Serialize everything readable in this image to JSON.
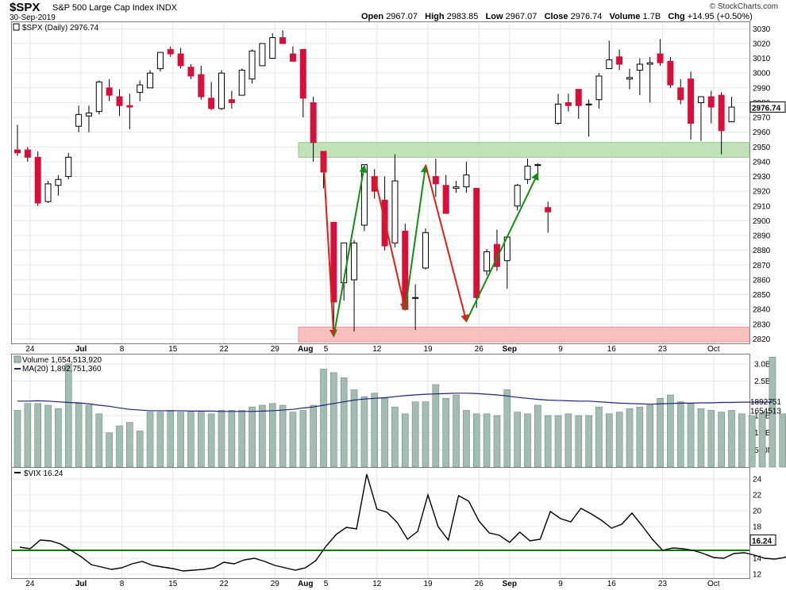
{
  "header": {
    "ticker": "$SPX",
    "name": "S&P 500 Large Cap Index",
    "exchange": "INDX",
    "date": "30-Sep-2019",
    "open_label": "Open",
    "open": "2967.07",
    "high_label": "High",
    "high": "2983.85",
    "low_label": "Low",
    "low": "2967.07",
    "close_label": "Close",
    "close": "2976.74",
    "volume_label": "Volume",
    "volume": "1.7B",
    "chg_label": "Chg",
    "chg": "+14.95 (+0.50%)",
    "credit": "© StockCharts.com"
  },
  "colors": {
    "up": "#ffffff",
    "down": "#d6103a",
    "volume_bar": "#a3bdb3",
    "ma_line": "#1a237e",
    "support_zone": "#b8dfae",
    "low_zone": "#f7b7b4",
    "red_arrow": "#e02010",
    "green_arrow": "#109010",
    "vix_line": "#000000",
    "vix_ref": "#007a00"
  },
  "chart_data": [
    {
      "type": "candlestick",
      "title": "$SPX (Daily) 2976.74",
      "ylim": [
        2817,
        3035
      ],
      "y_ticks": [
        2820,
        2830,
        2840,
        2850,
        2860,
        2870,
        2880,
        2890,
        2900,
        2910,
        2920,
        2930,
        2940,
        2950,
        2960,
        2970,
        2980,
        2990,
        3000,
        3010,
        3020,
        3030
      ],
      "last_value_label": "2976.74",
      "x_ticks": [
        "24",
        "Jul",
        "8",
        "15",
        "22",
        "29",
        "Aug",
        "5",
        "12",
        "19",
        "26",
        "Sep",
        "9",
        "16",
        "23",
        "Oct"
      ],
      "ohlc": [
        [
          2948,
          2965,
          2944,
          2946
        ],
        [
          2948,
          2950,
          2940,
          2943
        ],
        [
          2943,
          2947,
          2910,
          2912
        ],
        [
          2913,
          2927,
          2912,
          2925
        ],
        [
          2924,
          2931,
          2917,
          2928
        ],
        [
          2930,
          2946,
          2928,
          2943
        ],
        [
          2964,
          2978,
          2960,
          2972
        ],
        [
          2971,
          2978,
          2960,
          2973
        ],
        [
          2974,
          2995,
          2972,
          2994
        ],
        [
          2990,
          2996,
          2981,
          2985
        ],
        [
          2984,
          2989,
          2971,
          2978
        ],
        [
          2978,
          2986,
          2962,
          2977
        ],
        [
          2987,
          2995,
          2981,
          2992
        ],
        [
          2990,
          3002,
          2990,
          3000
        ],
        [
          3003,
          3014,
          3001,
          3014
        ],
        [
          3016,
          3018,
          3011,
          3013
        ],
        [
          3013,
          3017,
          3003,
          3005
        ],
        [
          3004,
          3006,
          2996,
          2998
        ],
        [
          2999,
          3005,
          2982,
          2984
        ],
        [
          2983,
          2994,
          2975,
          2976
        ],
        [
          2976,
          3002,
          2975,
          3000
        ],
        [
          2982,
          2988,
          2976,
          2980
        ],
        [
          2985,
          3003,
          2985,
          3002
        ],
        [
          2996,
          3016,
          2993,
          3015
        ],
        [
          3005,
          3020,
          3005,
          3020
        ],
        [
          3010,
          3027,
          3010,
          3024
        ],
        [
          3024,
          3029,
          3020,
          3020
        ],
        [
          3013,
          3018,
          3008,
          3008
        ],
        [
          3016,
          3016,
          2970,
          2983
        ],
        [
          2980,
          2984,
          2940,
          2953
        ],
        [
          2947,
          2947,
          2922,
          2933
        ],
        [
          2899,
          2899,
          2825,
          2845
        ],
        [
          2858,
          2885,
          2846,
          2885
        ],
        [
          2860,
          2887,
          2825,
          2885
        ],
        [
          2897,
          2938,
          2893,
          2938
        ],
        [
          2930,
          2935,
          2915,
          2920
        ],
        [
          2914,
          2930,
          2880,
          2883
        ],
        [
          2885,
          2945,
          2882,
          2927
        ],
        [
          2893,
          2898,
          2840,
          2840
        ],
        [
          2848,
          2857,
          2826,
          2848
        ],
        [
          2868,
          2895,
          2867,
          2892
        ],
        [
          2930,
          2942,
          2916,
          2925
        ],
        [
          2924,
          2931,
          2905,
          2905
        ],
        [
          2922,
          2927,
          2919,
          2923
        ],
        [
          2923,
          2940,
          2919,
          2931
        ],
        [
          2922,
          2922,
          2841,
          2848
        ],
        [
          2866,
          2881,
          2863,
          2879
        ],
        [
          2884,
          2894,
          2866,
          2869
        ],
        [
          2873,
          2889,
          2854,
          2889
        ],
        [
          2910,
          2925,
          2907,
          2924
        ],
        [
          2928,
          2942,
          2925,
          2937
        ],
        [
          2938,
          2939,
          2928,
          2938
        ],
        [
          2909,
          2913,
          2892,
          2906
        ],
        [
          2966,
          2986,
          2965,
          2979
        ],
        [
          2980,
          2986,
          2974,
          2978
        ],
        [
          2989,
          2989,
          2969,
          2978
        ],
        [
          2979,
          2982,
          2957,
          2979
        ],
        [
          2982,
          3000,
          2976,
          2998
        ],
        [
          3003,
          3022,
          3003,
          3009
        ],
        [
          3011,
          3016,
          3002,
          3006
        ],
        [
          2996,
          3003,
          2989,
          2997
        ],
        [
          3002,
          3010,
          2985,
          3006
        ],
        [
          3006,
          3011,
          2980,
          3007
        ],
        [
          3013,
          3023,
          3005,
          3007
        ],
        [
          3008,
          3011,
          2990,
          2992
        ],
        [
          2990,
          2996,
          2979,
          2982
        ],
        [
          2996,
          3001,
          2955,
          2966
        ],
        [
          2980,
          2984,
          2954,
          2984
        ],
        [
          2984,
          2988,
          2966,
          2977
        ],
        [
          2985,
          2987,
          2945,
          2961
        ],
        [
          2967,
          2984,
          2967,
          2977
        ]
      ]
    },
    {
      "type": "bar",
      "title": "Volume 1,654,513,920",
      "ma_label": "MA(20) 1,892,751,360",
      "y_ticks": [
        "3.0B",
        "2.5B",
        "1.5B",
        "1.0B",
        "500M"
      ],
      "y_tick_values": [
        3.0,
        2.5,
        1.5,
        1.0,
        0.5
      ],
      "ylim": [
        0,
        3.3
      ],
      "right_labels": [
        "1892751",
        "1654513"
      ],
      "values": [
        3.05,
        1.65,
        1.85,
        1.85,
        1.8,
        1.7,
        3.0,
        1.85,
        1.8,
        1.55,
        1.0,
        1.2,
        1.3,
        1.05,
        1.6,
        1.6,
        1.65,
        1.6,
        1.6,
        1.6,
        1.55,
        1.65,
        1.65,
        1.65,
        1.75,
        1.8,
        1.85,
        1.8,
        1.6,
        1.65,
        1.8,
        2.85,
        2.75,
        2.6,
        2.25,
        2.05,
        2.15,
        2.0,
        1.75,
        1.55,
        1.9,
        1.9,
        2.4,
        2.0,
        2.1,
        1.65,
        1.55,
        1.55,
        1.5,
        2.25,
        1.6,
        1.55,
        1.8,
        1.5,
        1.5,
        1.55,
        1.5,
        1.5,
        1.75,
        1.55,
        1.6,
        1.7,
        1.75,
        1.8,
        2.0,
        2.1,
        1.9,
        1.85,
        1.7,
        1.65,
        1.6,
        1.65,
        1.55,
        1.5,
        1.55,
        3.2,
        1.55,
        1.9,
        1.55,
        1.6,
        1.65,
        1.55
      ],
      "ma": [
        1.92,
        1.92,
        1.93,
        1.92,
        1.9,
        1.88,
        1.87,
        1.84,
        1.8,
        1.77,
        1.72,
        1.68,
        1.66,
        1.64,
        1.64,
        1.64,
        1.64,
        1.63,
        1.63,
        1.63,
        1.62,
        1.62,
        1.62,
        1.62,
        1.63,
        1.64,
        1.66,
        1.68,
        1.72,
        1.75,
        1.8,
        1.85,
        1.9,
        1.95,
        1.98,
        2.0,
        2.02,
        2.05,
        2.08,
        2.1,
        2.12,
        2.13,
        2.14,
        2.15,
        2.15,
        2.14,
        2.12,
        2.1,
        2.07,
        2.03,
        2.0,
        1.97,
        1.95,
        1.94,
        1.93,
        1.92,
        1.92,
        1.9,
        1.88,
        1.86,
        1.85,
        1.84,
        1.83,
        1.84,
        1.85,
        1.86,
        1.86,
        1.87,
        1.87,
        1.88,
        1.88,
        1.89,
        1.89,
        1.89,
        1.89
      ]
    },
    {
      "type": "line",
      "title": "$VIX 16.24",
      "ylim": [
        11.5,
        25.5
      ],
      "y_ticks": [
        12,
        14,
        16,
        18,
        20,
        22,
        24
      ],
      "last_value_label": "16.24",
      "reference_level": 15,
      "values": [
        15.3,
        15.4,
        15.2,
        16.3,
        16.2,
        15.8,
        15.0,
        14.2,
        13.2,
        12.9,
        12.6,
        12.8,
        13.3,
        13.6,
        13.1,
        12.9,
        12.7,
        12.4,
        12.5,
        12.6,
        12.8,
        13.5,
        13.3,
        13.8,
        14.0,
        13.6,
        13.1,
        12.8,
        12.5,
        12.8,
        13.7,
        15.5,
        17.0,
        17.9,
        17.7,
        24.6,
        20.2,
        19.8,
        18.5,
        16.4,
        17.4,
        22.0,
        18.0,
        16.3,
        21.9,
        21.2,
        18.7,
        17.2,
        16.9,
        16.0,
        17.3,
        16.2,
        16.4,
        19.9,
        19.0,
        18.6,
        20.3,
        19.6,
        18.8,
        17.8,
        18.3,
        19.7,
        18.1,
        16.4,
        15.0,
        15.3,
        15.2,
        15.0,
        14.6,
        14.1,
        14.0,
        14.6,
        14.7,
        14.4,
        14.0,
        13.9,
        14.1,
        15.3,
        15.1,
        15.3,
        17.2,
        16.3,
        16.3,
        17.2,
        16.24
      ]
    }
  ]
}
